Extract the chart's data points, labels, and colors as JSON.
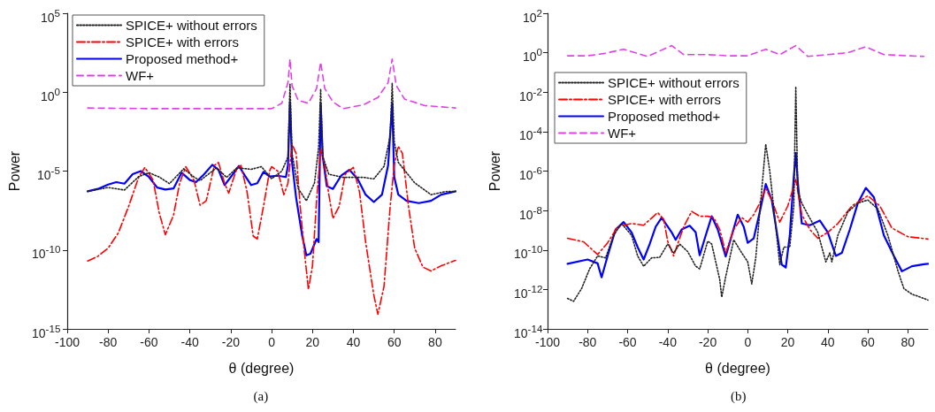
{
  "chart_data": [
    {
      "type": "line",
      "xlabel": "θ (degree)",
      "ylabel": "Power",
      "annotations": [
        "(a)"
      ],
      "log": "y",
      "grid": false,
      "legend": "top left",
      "xlim": [
        -100,
        90
      ],
      "xticks": [
        -100,
        -80,
        -60,
        -40,
        -20,
        0,
        20,
        40,
        60,
        80
      ],
      "ylim": [
        1e-15,
        100000
      ],
      "yticks": [
        {
          "value": 1e-15,
          "label": "10$^{-15}$"
        },
        {
          "value": 1e-10,
          "label": "10$^{-10}$"
        },
        {
          "value": 1e-05,
          "label": "10$^{-5}$"
        },
        {
          "value": 1,
          "label": "10$^{0}$"
        },
        {
          "value": 100000,
          "label": "10$^{5}$"
        }
      ],
      "series": [
        {
          "name": "SPICE+ without errors",
          "color": "#222222",
          "line_style": "dotted",
          "x": [
            -90,
            -80,
            -72,
            -65,
            -60,
            -55,
            -50,
            -43,
            -38,
            -35,
            -30,
            -27,
            -22,
            -17,
            -10,
            -5,
            0,
            5,
            8,
            9,
            10,
            13,
            17,
            21,
            23,
            24,
            25,
            28,
            35,
            45,
            50,
            55,
            58,
            59,
            60,
            62,
            70,
            78,
            85,
            90
          ],
          "values": [
            5.2e-07,
            9.1e-07,
            6.3e-07,
            4.5e-06,
            7.9e-06,
            4.2e-06,
            1.6e-06,
            1.4e-05,
            4.2e-06,
            2.5e-06,
            7.9e-06,
            1.6e-05,
            4e-06,
            1.6e-05,
            1.3e-05,
            1.9e-05,
            3.3e-06,
            1e-05,
            7.9e-05,
            3.2,
            0.00013,
            7.9e-07,
            1.3e-07,
            1.8e-06,
            0.00032,
            1.6,
            8.5e-05,
            6.3e-06,
            4e-06,
            4e-06,
            3.2e-06,
            2e-05,
            0.0017,
            3.6,
            0.00072,
            3.5e-05,
            1.8e-06,
            3.2e-07,
            5e-07,
            5.2e-07
          ]
        },
        {
          "name": "SPICE+ with errors",
          "color": "#ff0000",
          "line_style": "dashdot",
          "x": [
            -90,
            -85,
            -80,
            -75,
            -70,
            -65,
            -62,
            -58,
            -55,
            -52,
            -48,
            -45,
            -42,
            -38,
            -35,
            -32,
            -28,
            -26,
            -23,
            -21,
            -17,
            -15,
            -12,
            -9,
            -7,
            -4,
            -1,
            0,
            3,
            6,
            8,
            10,
            12,
            14,
            16,
            18,
            20,
            22,
            24,
            26,
            28,
            30,
            33,
            36,
            40,
            43,
            46,
            50,
            52,
            55,
            58,
            60,
            62,
            64,
            67,
            70,
            74,
            78,
            83,
            90
          ],
          "values": [
            2e-11,
            4e-11,
            1.3e-10,
            1.2e-09,
            5.6e-08,
            4.2e-06,
            1.7e-05,
            2.7e-06,
            2.3e-08,
            9.3e-10,
            1.6e-08,
            1.7e-06,
            1.9e-05,
            2.7e-06,
            6.9e-08,
            1.3e-07,
            2.3e-05,
            3.5e-05,
            1.7e-06,
            4e-07,
            1.5e-05,
            2.3e-05,
            4.8e-07,
            7.6e-10,
            5e-10,
            5.6e-08,
            1e-05,
            1.9e-05,
            1e-05,
            3.2e-07,
            1.7e-06,
            0.0005,
            0.00013,
            5.6e-08,
            8.7e-11,
            3.2e-13,
            1e-11,
            1.3e-07,
            0.00025,
            2.3e-05,
            3.2e-07,
            1e-08,
            5.6e-08,
            6.3e-06,
            1.7e-05,
            4.8e-07,
            3.2e-10,
            1.4e-13,
            8.5e-15,
            5e-13,
            5.6e-08,
            2.3e-05,
            0.00038,
            0.00013,
            5.6e-08,
            1.3e-10,
            8.3e-12,
            4.7e-12,
            1e-11,
            2.2e-11
          ]
        },
        {
          "name": "Proposed method+",
          "color": "#0000ff",
          "line_style": "solid",
          "x": [
            -90,
            -85,
            -80,
            -76,
            -72,
            -68,
            -64,
            -60,
            -56,
            -52,
            -48,
            -44,
            -40,
            -37,
            -33,
            -29,
            -26,
            -23,
            -20,
            -16,
            -13,
            -10,
            -7,
            -4,
            -1,
            3,
            7,
            8,
            9,
            10,
            12,
            15,
            17,
            19,
            22,
            23,
            24,
            25,
            27,
            30,
            34,
            38,
            42,
            46,
            50,
            54,
            57,
            59,
            60,
            62,
            66,
            72,
            78,
            83,
            90
          ],
          "values": [
            5.2e-07,
            7.4e-07,
            1.4e-06,
            2e-06,
            1.6e-06,
            6.3e-06,
            1e-05,
            4.2e-06,
            9.1e-07,
            6.8e-07,
            7.9e-07,
            7.9e-06,
            2.7e-06,
            2e-06,
            6.3e-06,
            2.5e-05,
            1.2e-05,
            1.3e-06,
            4.2e-06,
            2.1e-05,
            5e-06,
            1.3e-06,
            1.7e-06,
            8.9e-06,
            4.5e-06,
            5.1e-06,
            4.2e-06,
            2.3e-05,
            0.24,
            3.5e-05,
            2e-07,
            7.6e-10,
            4.6e-11,
            5.8e-11,
            5e-10,
            3.2e-10,
            0.19,
            8.5e-05,
            1.1e-06,
            7.4e-07,
            5.1e-06,
            1.2e-05,
            3.3e-06,
            3.2e-07,
            1.1e-07,
            3.2e-07,
            2.3e-05,
            0.19,
            4.2e-06,
            3.2e-07,
            1.3e-07,
            9.3e-08,
            1.3e-07,
            3.2e-07,
            5.2e-07
          ]
        },
        {
          "name": "WF+",
          "color": "#e040e8",
          "line_style": "dashed",
          "x": [
            -90,
            -60,
            -20,
            0,
            5,
            8,
            9,
            10,
            13,
            18,
            22,
            24,
            26,
            30,
            35,
            45,
            52,
            57,
            59,
            61,
            65,
            75,
            90
          ],
          "values": [
            0.1,
            0.09,
            0.09,
            0.09,
            0.2,
            4,
            126,
            2.6,
            0.3,
            0.2,
            1.7,
            80,
            1.7,
            0.24,
            0.09,
            0.16,
            0.46,
            4,
            126,
            2.6,
            0.37,
            0.14,
            0.1
          ]
        }
      ]
    },
    {
      "type": "line",
      "xlabel": "θ (degree)",
      "ylabel": "Power",
      "annotations": [
        "(b)"
      ],
      "log": "y",
      "grid": false,
      "legend": "top left",
      "xlim": [
        -100,
        90
      ],
      "xticks": [
        -100,
        -80,
        -60,
        -40,
        -20,
        0,
        20,
        40,
        60,
        80
      ],
      "ylim": [
        1e-14,
        100
      ],
      "yticks": [
        {
          "value": 1e-14,
          "label": "10$^{-14}$"
        },
        {
          "value": 1e-12,
          "label": "10$^{-12}$"
        },
        {
          "value": 1e-10,
          "label": "10$^{-10}$"
        },
        {
          "value": 1e-08,
          "label": "10$^{-8}$"
        },
        {
          "value": 1e-06,
          "label": "10$^{-6}$"
        },
        {
          "value": 0.0001,
          "label": "10$^{-4}$"
        },
        {
          "value": 0.01,
          "label": "10$^{-2}$"
        },
        {
          "value": 1,
          "label": "10$^{0}$"
        },
        {
          "value": 100,
          "label": "10$^{2}$"
        }
      ],
      "series": [
        {
          "name": "SPICE+ without errors",
          "color": "#222222",
          "line_style": "dotted",
          "x": [
            -90,
            -87,
            -83,
            -79,
            -75,
            -71,
            -67,
            -63,
            -58,
            -55,
            -52,
            -48,
            -44,
            -40,
            -37,
            -34,
            -30,
            -26,
            -24,
            -20,
            -18,
            -14,
            -13,
            -11,
            -7,
            -3,
            0,
            2,
            4,
            6,
            9,
            11,
            14,
            16,
            18,
            21,
            23,
            24,
            25,
            27,
            30,
            35,
            39,
            41,
            42,
            45,
            50,
            55,
            60,
            65,
            70,
            75,
            78,
            82,
            88,
            90
          ],
          "values": [
            3.5e-13,
            2.5e-13,
            1.1e-12,
            1.1e-11,
            5e-11,
            4e-11,
            5.5e-10,
            2.2e-09,
            5.5e-10,
            5e-11,
            1.5e-11,
            4e-11,
            4.2e-11,
            2e-10,
            7.1e-11,
            2e-10,
            8.3e-11,
            1.5e-11,
            1.1e-11,
            2.8e-10,
            2e-10,
            3.2e-12,
            4.1e-13,
            4.5e-12,
            3.3e-10,
            7.1e-11,
            2.5e-11,
            1.9e-12,
            4e-11,
            8.5e-09,
            2.3e-05,
            1e-06,
            1.5e-09,
            1.8e-11,
            1.4e-10,
            1.4e-10,
            1.7e-08,
            0.019,
            9.5e-08,
            2.4e-08,
            6.2e-09,
            7.8e-10,
            2.5e-11,
            7.1e-11,
            2.5e-11,
            5.5e-10,
            8.5e-09,
            2.4e-08,
            3.4e-08,
            1.2e-08,
            5.5e-10,
            8.9e-12,
            1.1e-12,
            5.8e-13,
            3.5e-13,
            2.9e-13
          ]
        },
        {
          "name": "SPICE+ with errors",
          "color": "#ff0000",
          "line_style": "dashdot",
          "x": [
            -90,
            -82,
            -75,
            -70,
            -65,
            -58,
            -52,
            -45,
            -42,
            -40,
            -37,
            -35,
            -32,
            -28,
            -24,
            -20,
            -17,
            -14,
            -11,
            -7,
            -3,
            0,
            3,
            6,
            9,
            12,
            16,
            20,
            24,
            27,
            31,
            35,
            40,
            45,
            52,
            60,
            66,
            72,
            80,
            90
          ],
          "values": [
            3.9e-10,
            2.6e-10,
            5.9e-11,
            2.3e-10,
            1.5e-09,
            2.2e-09,
            1.8e-09,
            7.9e-09,
            3.6e-09,
            2.8e-10,
            5e-11,
            2e-10,
            1.5e-09,
            9.1e-09,
            5.1e-09,
            5.1e-09,
            4.4e-09,
            1.1e-09,
            7.1e-11,
            1.1e-09,
            4.4e-09,
            2.6e-09,
            6.2e-09,
            2.4e-08,
            1.3e-07,
            3.4e-08,
            2.6e-09,
            1.7e-08,
            3.7e-07,
            6.2e-09,
            1.1e-09,
            3.9e-10,
            7.8e-10,
            2.2e-09,
            1.7e-08,
            5.6e-08,
            1.7e-08,
            1.3e-09,
            4.7e-10,
            3.6e-10
          ]
        },
        {
          "name": "Proposed method+",
          "color": "#0000ff",
          "line_style": "solid",
          "x": [
            -90,
            -80,
            -75,
            -73,
            -70,
            -66,
            -62,
            -58,
            -55,
            -52,
            -49,
            -46,
            -43,
            -41,
            -38,
            -36,
            -33,
            -29,
            -26,
            -24,
            -21,
            -18,
            -15,
            -11,
            -8,
            -5,
            -2,
            0,
            3,
            6,
            9,
            12,
            15,
            17,
            19,
            21,
            23,
            24,
            25,
            27,
            31,
            36,
            40,
            44,
            47,
            51,
            55,
            59,
            63,
            68,
            73,
            77,
            82,
            88,
            90
          ],
          "values": [
            2e-11,
            3.3e-11,
            2.1e-11,
            4.1e-12,
            5e-11,
            1.1e-09,
            2.6e-09,
            7.8e-10,
            1.4e-10,
            3.3e-11,
            2e-10,
            1.5e-09,
            4.4e-09,
            2.2e-09,
            7.8e-10,
            3.3e-10,
            1.1e-09,
            1.7e-09,
            7.8e-10,
            5.4e-11,
            5.5e-10,
            5.1e-09,
            1.1e-09,
            4.7e-11,
            5.5e-10,
            6.2e-09,
            1.5e-09,
            2.3e-10,
            3.9e-10,
            8.5e-09,
            2.2e-07,
            3.4e-08,
            3.9e-10,
            1.8e-11,
            1.3e-11,
            5.5e-10,
            5.2e-07,
            8.3e-06,
            2.7e-07,
            2.2e-09,
            1.8e-09,
            3.1e-09,
            7.8e-10,
            5e-11,
            7.1e-11,
            1.1e-09,
            2.4e-08,
            1.4e-07,
            4.8e-08,
            5.5e-10,
            5e-11,
            8.3e-12,
            1.5e-11,
            1.9e-11,
            2e-11
          ]
        },
        {
          "name": "WF+",
          "color": "#e040e8",
          "line_style": "dashed",
          "x": [
            -90,
            -80,
            -72,
            -62,
            -50,
            -38,
            -32,
            -20,
            -10,
            0,
            9,
            16,
            24,
            30,
            40,
            50,
            59,
            68,
            80,
            88
          ],
          "values": [
            0.7,
            0.7,
            0.9,
            1.5,
            0.65,
            2.3,
            0.8,
            0.8,
            0.7,
            0.7,
            1.5,
            0.8,
            2.3,
            0.65,
            0.8,
            1.0,
            2.0,
            0.8,
            0.7,
            0.65
          ]
        }
      ]
    }
  ]
}
